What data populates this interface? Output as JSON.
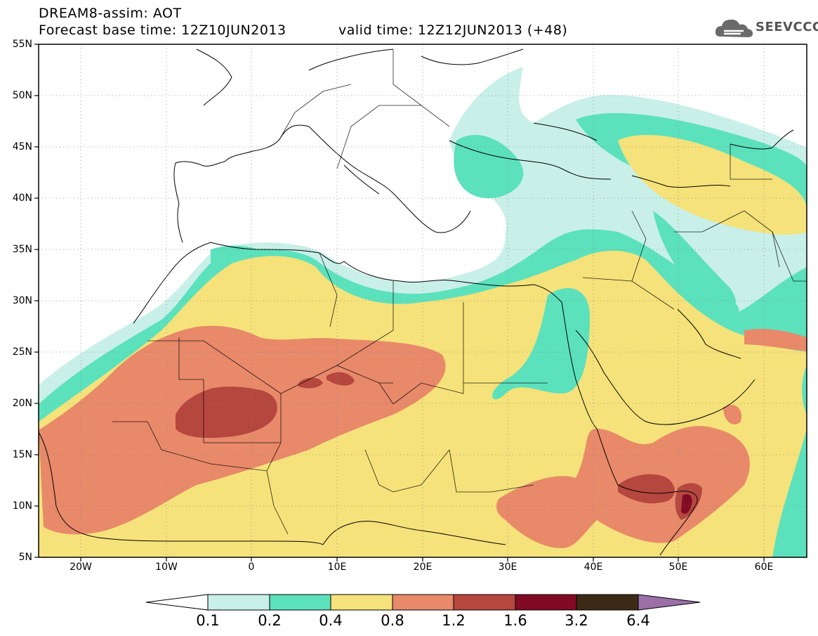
{
  "header": {
    "title_line1": "DREAM8-assim: AOT",
    "title_line2": "Forecast base time: 12Z10JUN2013",
    "valid_time": "valid time: 12Z12JUN2013 (+48)",
    "logo_text": "SEEVCCC"
  },
  "map": {
    "lat_labels": [
      "55N",
      "50N",
      "45N",
      "40N",
      "35N",
      "30N",
      "25N",
      "20N",
      "15N",
      "10N",
      "5N"
    ],
    "lon_labels": [
      "20W",
      "10W",
      "0",
      "10E",
      "20E",
      "30E",
      "40E",
      "50E",
      "60E"
    ],
    "extent": {
      "lon_min": -25,
      "lon_max": 65,
      "lat_min": 5,
      "lat_max": 55
    }
  },
  "colorbar": {
    "levels": [
      "0.1",
      "0.2",
      "0.4",
      "0.8",
      "1.2",
      "1.6",
      "3.2",
      "6.4"
    ],
    "colors": [
      "#ffffff",
      "#c8f0e8",
      "#5ce1bd",
      "#f5e27a",
      "#e8896a",
      "#b5473f",
      "#830a25",
      "#3d2a16",
      "#9b6fa7"
    ]
  }
}
